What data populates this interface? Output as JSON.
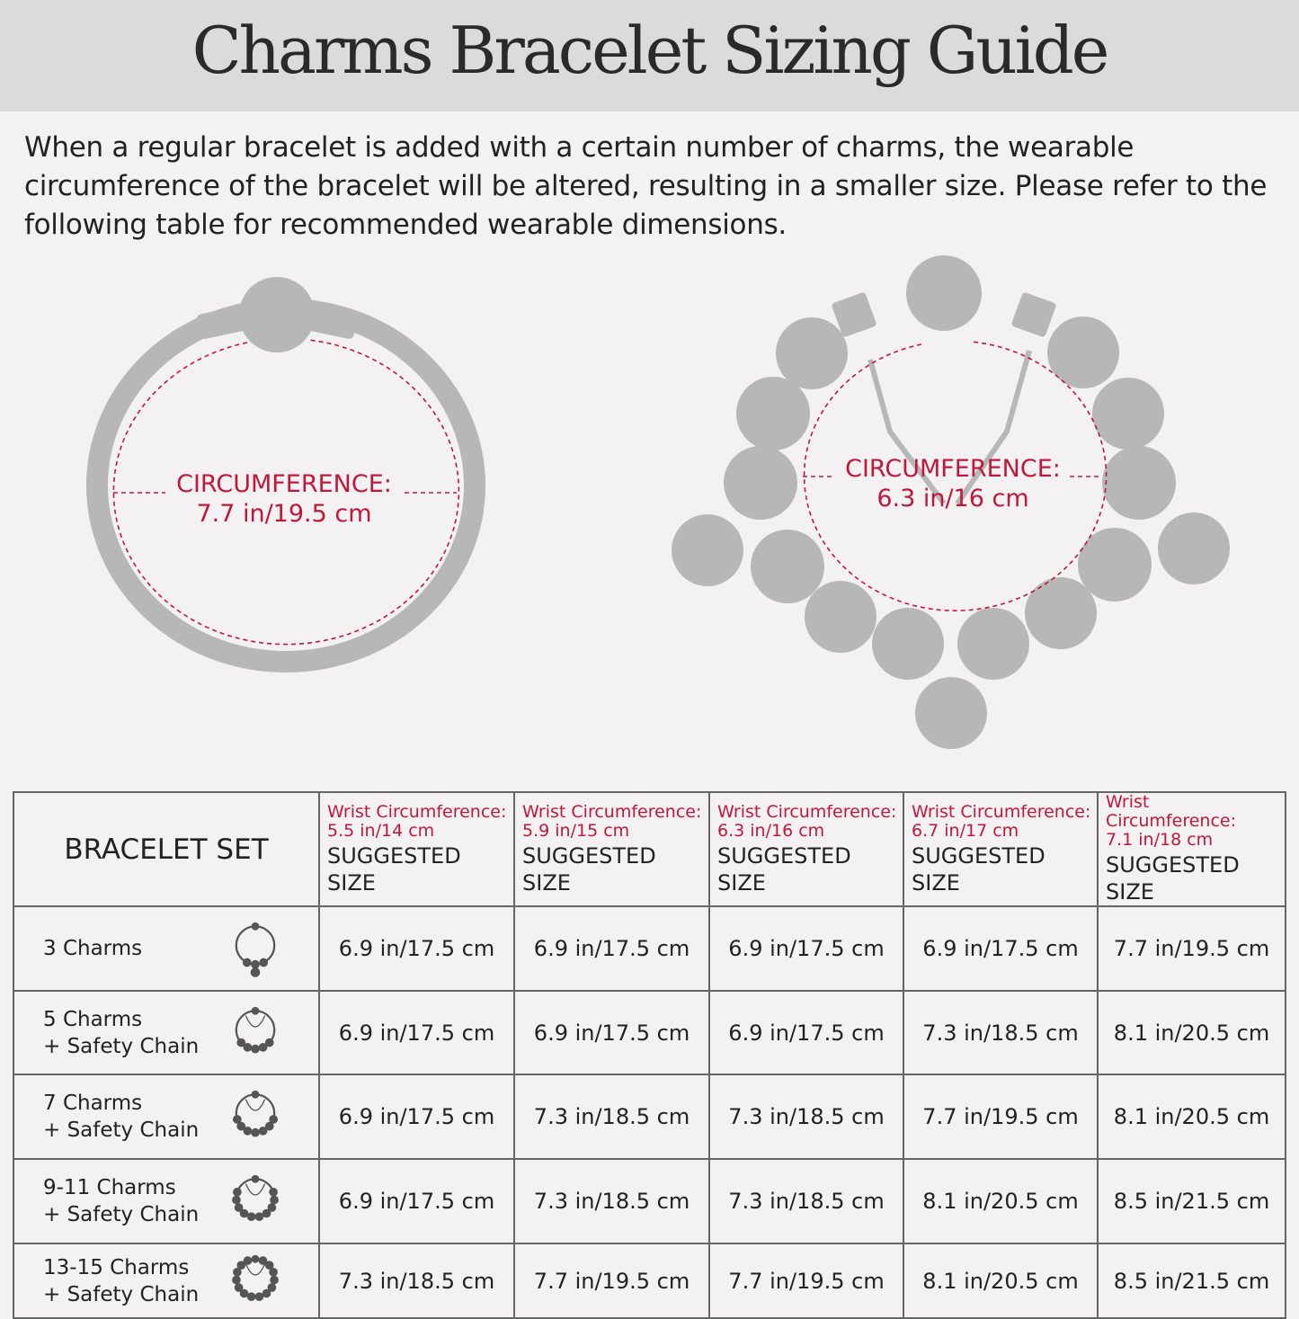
{
  "title": "Charms Bracelet Sizing Guide",
  "intro": "When a regular bracelet is added with a certain number of charms, the wearable circumference of the bracelet will be altered, resulting in a smaller size. Please refer to the following table for recommended wearable dimensions.",
  "diagrams": [
    {
      "label": "CIRCUMFERENCE:",
      "value": "7.7 in/19.5 cm"
    },
    {
      "label": "CIRCUMFERENCE:",
      "value": "6.3 in/16 cm"
    }
  ],
  "colors": {
    "accent": "#c0183a",
    "bead": "#b7b7b7",
    "header_bg": "#dcdbdb"
  },
  "table": {
    "corner": "BRACELET SET",
    "columns": [
      {
        "wrist_label": "Wrist Circumference:",
        "wrist": "5.5 in/14 cm",
        "sub": "SUGGESTED SIZE"
      },
      {
        "wrist_label": "Wrist Circumference:",
        "wrist": "5.9 in/15 cm",
        "sub": "SUGGESTED SIZE"
      },
      {
        "wrist_label": "Wrist Circumference:",
        "wrist": "6.3 in/16 cm",
        "sub": "SUGGESTED SIZE"
      },
      {
        "wrist_label": "Wrist Circumference:",
        "wrist": "6.7 in/17 cm",
        "sub": "SUGGESTED SIZE"
      },
      {
        "wrist_label": "Wrist Circumference:",
        "wrist": "7.1 in/18 cm",
        "sub": "SUGGESTED SIZE"
      }
    ],
    "rows": [
      {
        "set": "3 Charms",
        "chain": "",
        "icon": "bracelet-3-charms-icon",
        "sizes": [
          "6.9 in/17.5 cm",
          "6.9 in/17.5 cm",
          "6.9 in/17.5 cm",
          "6.9 in/17.5 cm",
          "7.7 in/19.5 cm"
        ]
      },
      {
        "set": "5 Charms",
        "chain": "+ Safety Chain",
        "icon": "bracelet-5-charms-icon",
        "sizes": [
          "6.9 in/17.5 cm",
          "6.9 in/17.5 cm",
          "6.9 in/17.5 cm",
          "7.3 in/18.5 cm",
          "8.1 in/20.5 cm"
        ]
      },
      {
        "set": "7 Charms",
        "chain": "+ Safety Chain",
        "icon": "bracelet-7-charms-icon",
        "sizes": [
          "6.9 in/17.5 cm",
          "7.3 in/18.5 cm",
          "7.3 in/18.5 cm",
          "7.7 in/19.5 cm",
          "8.1 in/20.5 cm"
        ]
      },
      {
        "set": "9-11 Charms",
        "chain": "+ Safety Chain",
        "icon": "bracelet-9-11-charms-icon",
        "sizes": [
          "6.9 in/17.5 cm",
          "7.3 in/18.5 cm",
          "7.3 in/18.5 cm",
          "8.1 in/20.5 cm",
          "8.5 in/21.5 cm"
        ]
      },
      {
        "set": "13-15 Charms",
        "chain": "+ Safety Chain",
        "icon": "bracelet-13-15-charms-icon",
        "sizes": [
          "7.3 in/18.5 cm",
          "7.7 in/19.5 cm",
          "7.7 in/19.5 cm",
          "8.1 in/20.5 cm",
          "8.5 in/21.5 cm"
        ]
      }
    ]
  }
}
